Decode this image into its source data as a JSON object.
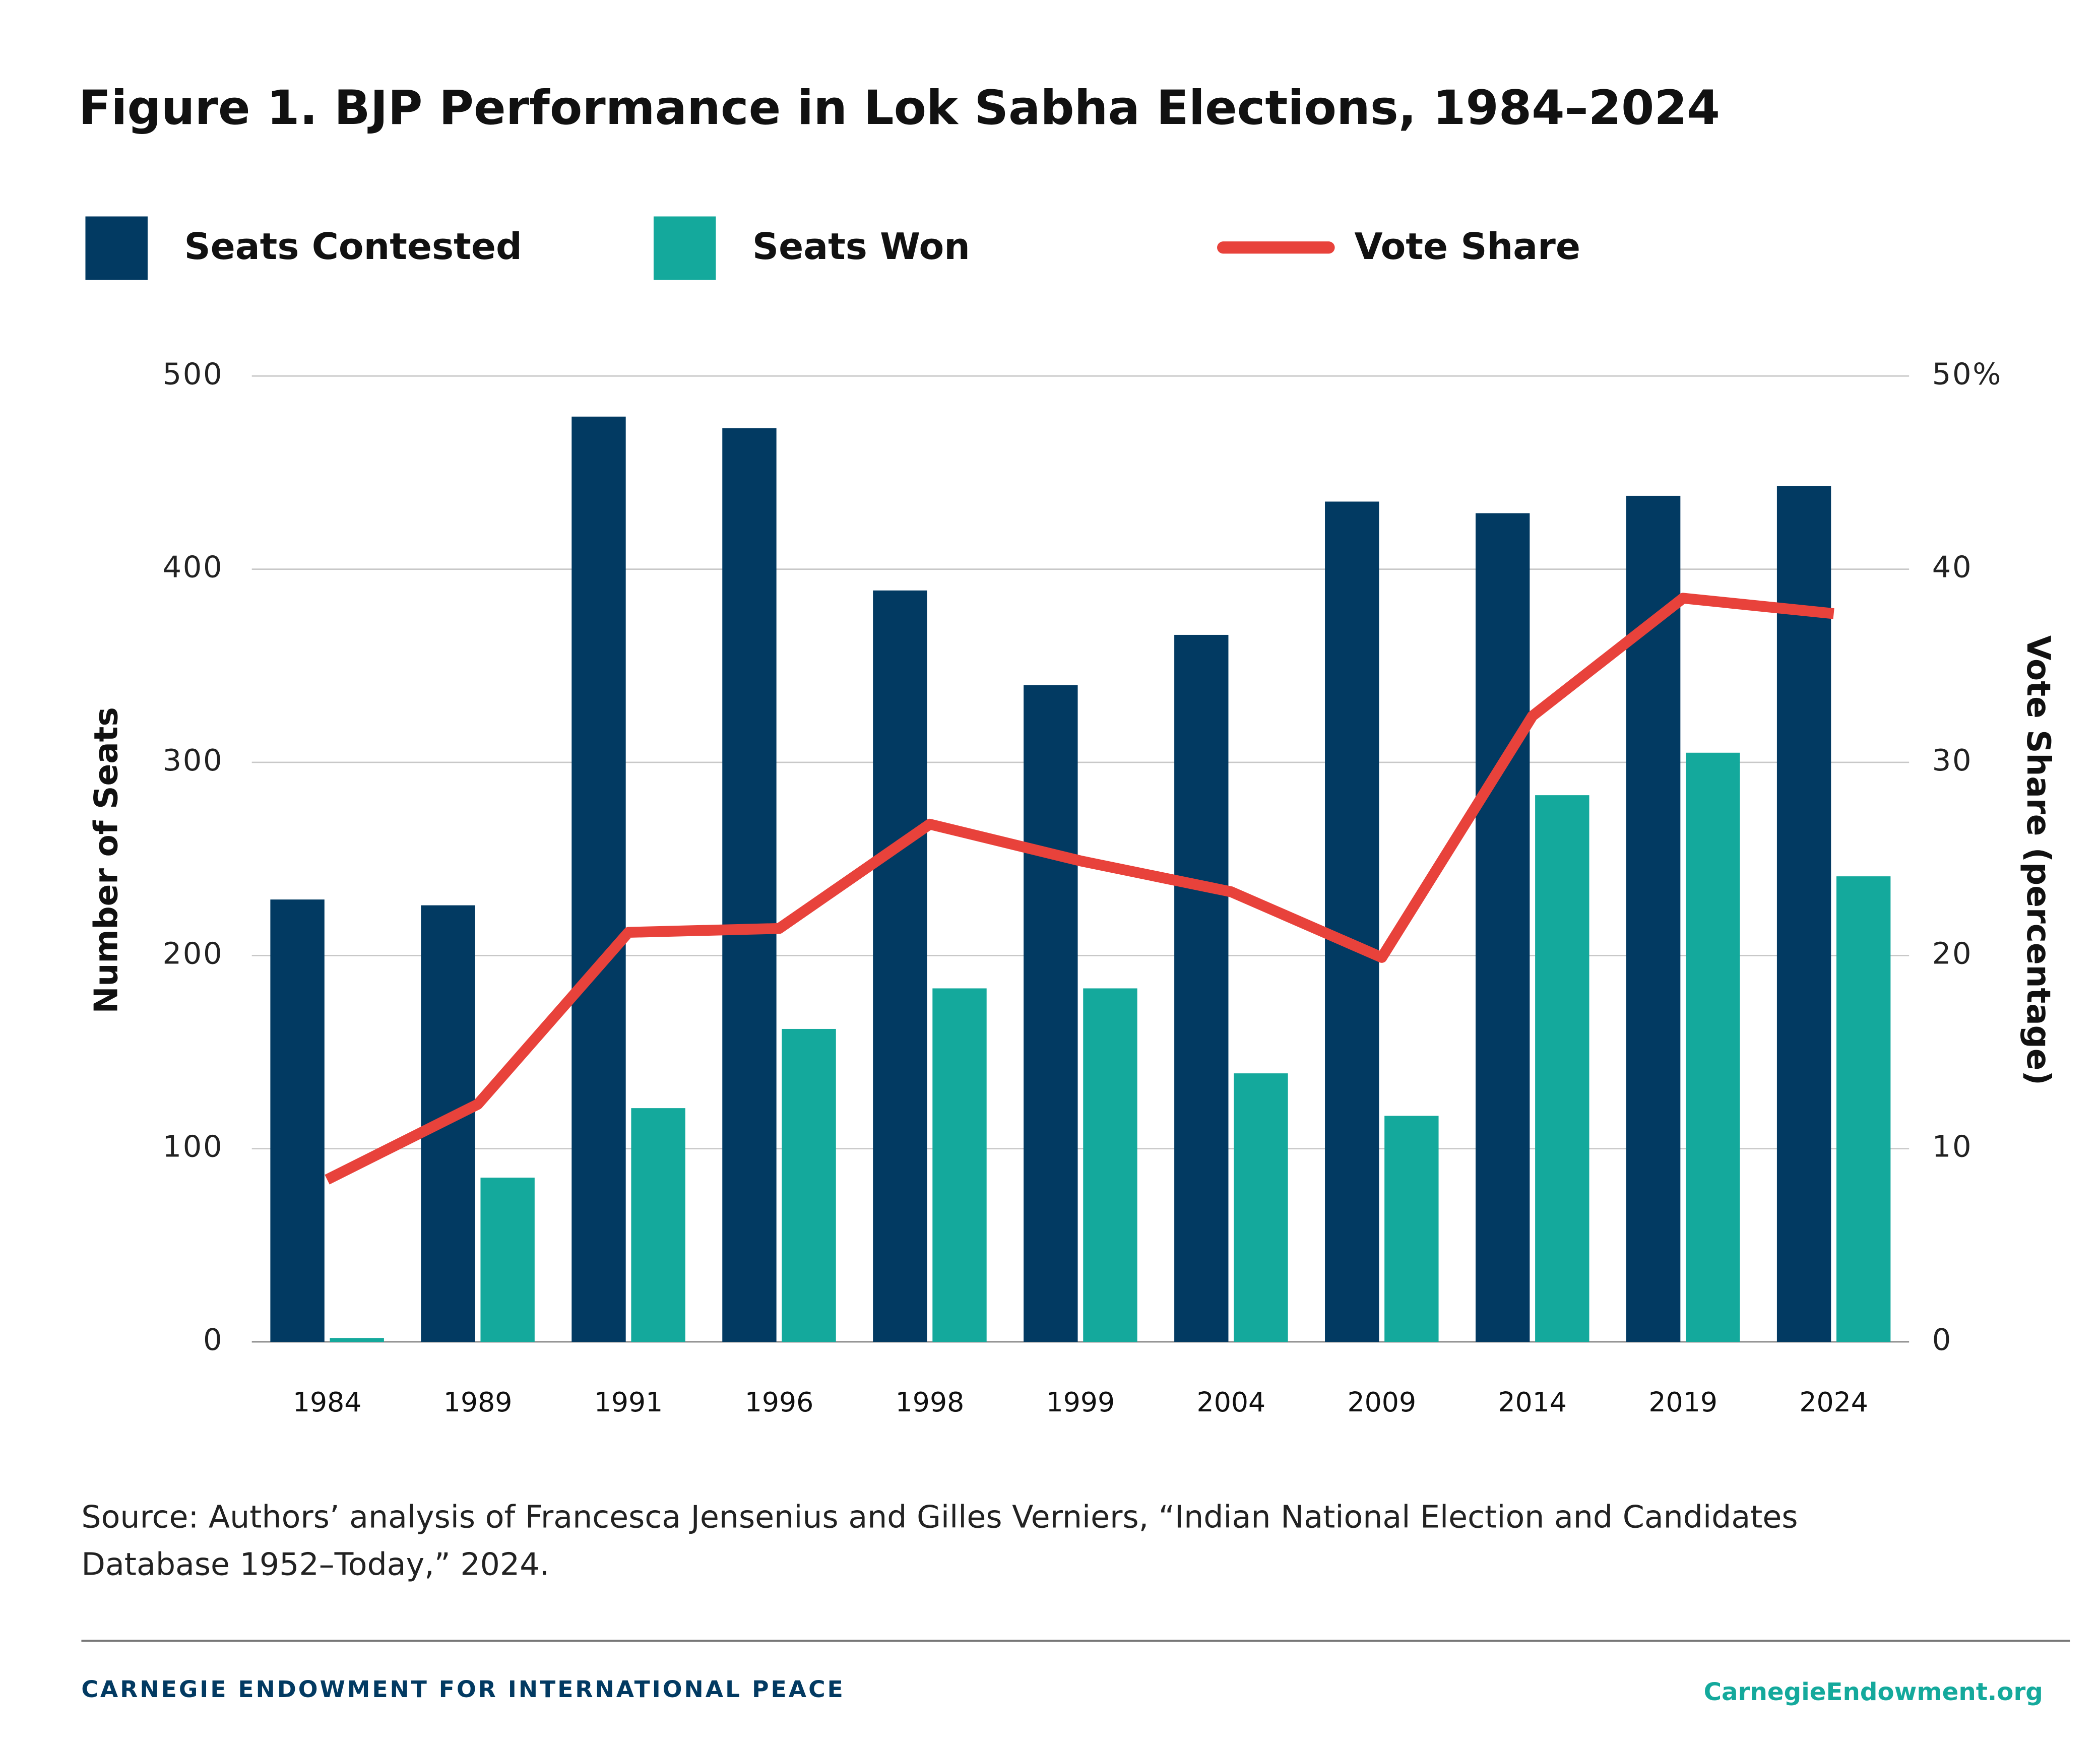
{
  "chart_data": {
    "type": "bar-line",
    "title": "Figure 1. BJP Performance in Lok Sabha Elections, 1984–2024",
    "categories": [
      "1984",
      "1989",
      "1991",
      "1996",
      "1998",
      "1999",
      "2004",
      "2009",
      "2014",
      "2019",
      "2024"
    ],
    "series": [
      {
        "name": "Seats Contested",
        "type": "bar",
        "color": "#023a62",
        "values": [
          229,
          226,
          479,
          473,
          389,
          340,
          366,
          435,
          429,
          438,
          443
        ]
      },
      {
        "name": "Seats Won",
        "type": "bar",
        "color": "#14a99c",
        "values": [
          2,
          85,
          121,
          162,
          183,
          183,
          139,
          117,
          283,
          305,
          241
        ]
      },
      {
        "name": "Vote Share",
        "type": "line",
        "axis": "y2",
        "color": "#e8423b",
        "values": [
          8.4,
          12.3,
          21.2,
          21.4,
          26.8,
          24.9,
          23.3,
          19.9,
          32.4,
          38.5,
          37.7
        ]
      }
    ],
    "ylabel": "Number of Seats",
    "y2label": "Vote Share  (percentage)",
    "ylim": [
      0,
      500
    ],
    "yticks": [
      0,
      100,
      200,
      300,
      400,
      500
    ],
    "y2lim": [
      0,
      50
    ],
    "y2ticks": [
      0,
      10,
      20,
      30,
      40,
      {
        "value": 50,
        "label": "50%"
      }
    ],
    "grid": true,
    "legend": "top",
    "source": "Source: Authors’ analysis of Francesca Jensenius and Gilles Verniers, “Indian National Election and Candidates Database 1952–Today,” 2024."
  },
  "footer": {
    "organization": "CARNEGIE ENDOWMENT FOR INTERNATIONAL PEACE",
    "website": "CarnegieEndowment.org"
  }
}
